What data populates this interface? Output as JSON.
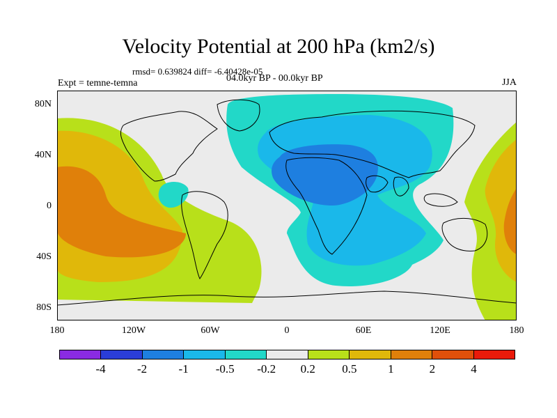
{
  "title": "Velocity Potential at 200 hPa (km2/s)",
  "stats_line": "rmsd= 0.639824 diff= -6.40428e-05",
  "experiment": "Expt = temne-temna",
  "period": "04.0kyr BP - 00.0kyr BP",
  "season": "JJA",
  "y_ticks": [
    "80N",
    "40N",
    "0",
    "40S",
    "80S"
  ],
  "x_ticks": [
    "180",
    "120W",
    "60W",
    "0",
    "60E",
    "120E",
    "180"
  ],
  "colorbar": {
    "colors": [
      "#8a2be2",
      "#2a3dd8",
      "#1e7fe0",
      "#1ab8ea",
      "#22d8c8",
      "#ebebeb",
      "#b8e01a",
      "#e0b80a",
      "#e0800a",
      "#e0500a",
      "#ea1a0a"
    ],
    "labels": [
      "-4",
      "-2",
      "-1",
      "-0.5",
      "-0.2",
      "0.2",
      "0.5",
      "1",
      "2",
      "4"
    ]
  }
}
